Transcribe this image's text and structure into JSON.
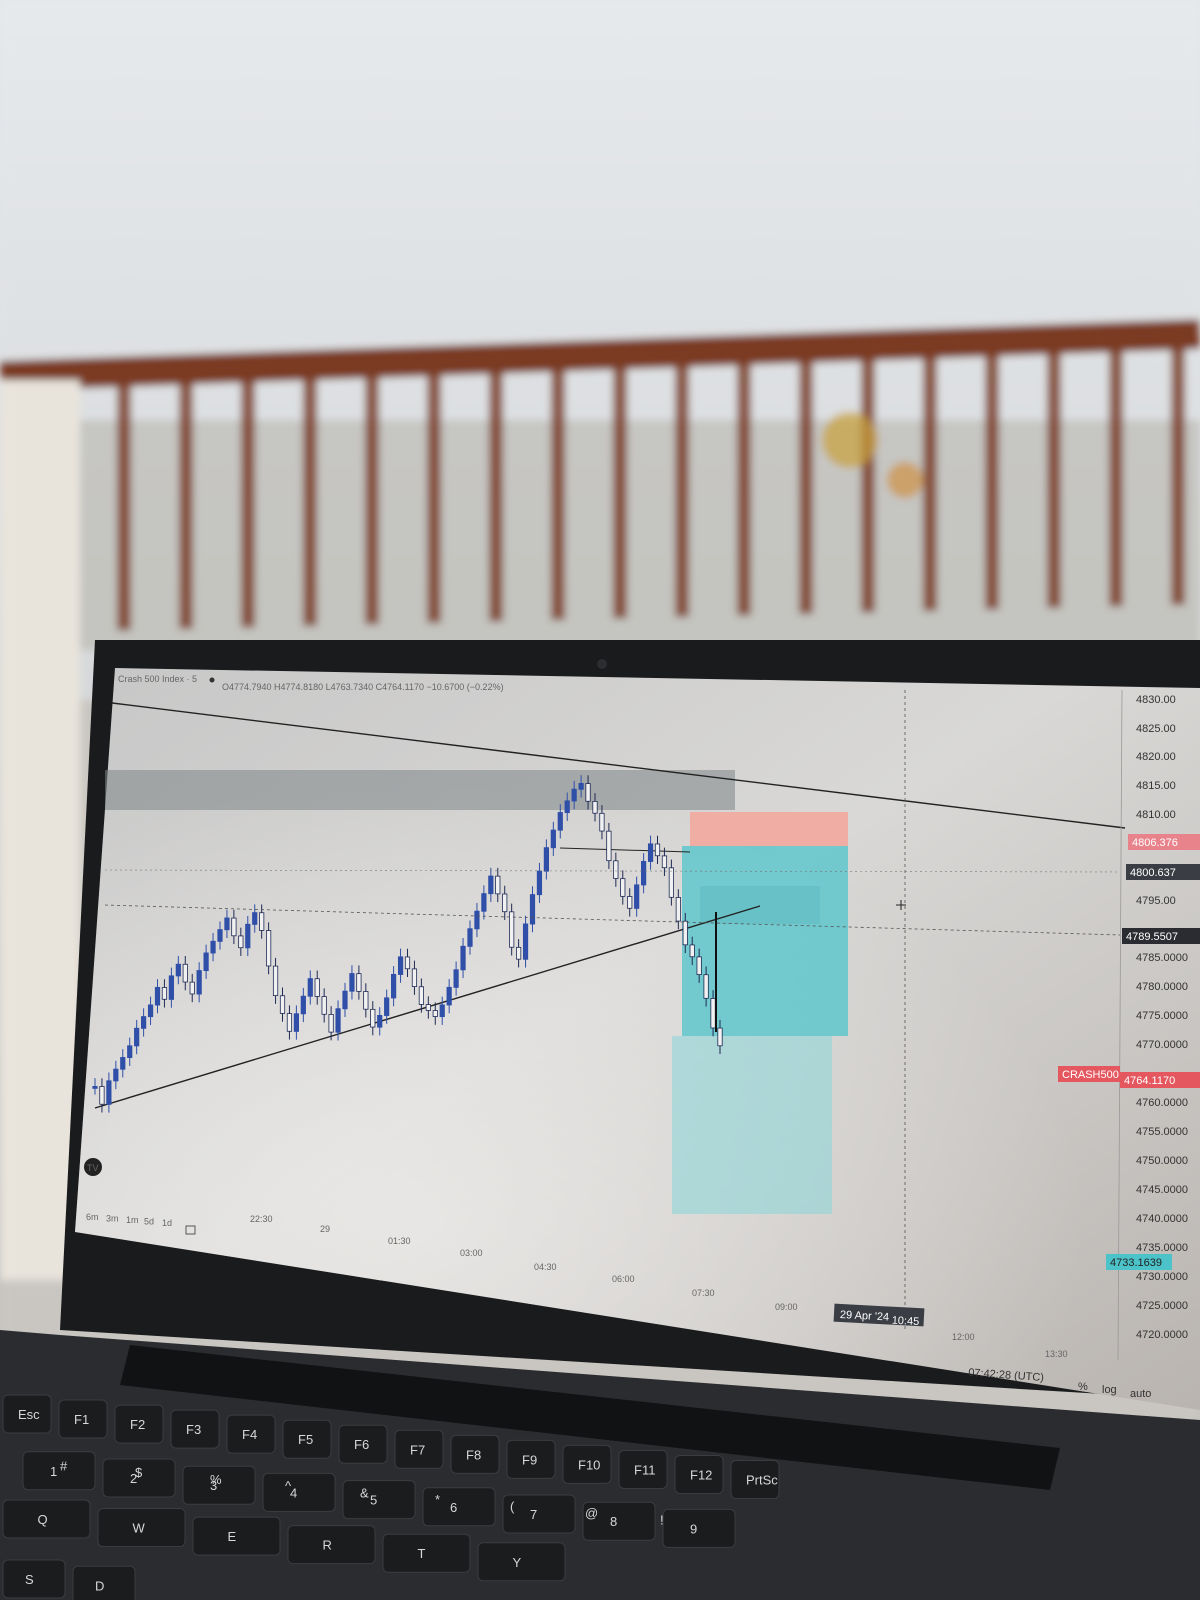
{
  "chart": {
    "symbol_legend": "Crash 500 Index · 5",
    "ohlc_text": "O4774.7940 H4774.8180 L4763.7340 C4764.1170 −10.6700 (−0.22%)",
    "price_ticks": [
      "4830.00",
      "4825.00",
      "4820.00",
      "4815.00",
      "4810.00",
      "4795.00",
      "4785.0000",
      "4780.0000",
      "4775.0000",
      "4770.0000",
      "4760.0000",
      "4755.0000",
      "4750.0000",
      "4745.0000",
      "4740.0000",
      "4735.0000",
      "4730.0000",
      "4725.0000",
      "4720.0000"
    ],
    "badges": {
      "target": "4806.376",
      "level": "4800.637",
      "crosshair": "4789.5507",
      "symbol": "CRASH500",
      "last": "4764.1170",
      "stop": "4733.1639"
    },
    "time_ticks": [
      "22:30",
      "29",
      "01:30",
      "03:00",
      "04:30",
      "06:00",
      "07:30",
      "09:00",
      "12:00",
      "13:30"
    ],
    "crosshair_date": "29 Apr '24",
    "crosshair_time": "10:45",
    "ranges": [
      "6m",
      "3m",
      "1m",
      "5d",
      "1d"
    ],
    "clock": "07:42:28 (UTC)",
    "scale_opts": {
      "percent": "%",
      "log": "log",
      "auto": "auto"
    },
    "tv_logo": "TV"
  },
  "keyboard": {
    "keys": [
      "Esc",
      "F1",
      "F2",
      "F3",
      "F4",
      "F5",
      "F6",
      "F7",
      "F8",
      "F9",
      "F10",
      "F11",
      "F12",
      "PrtSc",
      "1",
      "2",
      "3",
      "4",
      "5",
      "6",
      "7",
      "8",
      "9",
      "Q",
      "W",
      "E",
      "R",
      "T",
      "Y",
      "S",
      "D",
      "#",
      "$",
      "%",
      "^",
      "&",
      "*",
      "(",
      "@",
      "!"
    ]
  },
  "colors": {
    "bull": "#2f4fa8",
    "bear": "#1f2a55",
    "target_zone": "#5fc7cc",
    "stop_zone": "#f2a99f",
    "supply_zone": "#7e8586",
    "railing": "#7a3b22"
  },
  "candles": [
    4765,
    4762,
    4766,
    4768,
    4770,
    4772,
    4775,
    4777,
    4779,
    4782,
    4780,
    4784,
    4786,
    4783,
    4781,
    4785,
    4788,
    4790,
    4792,
    4794,
    4791,
    4789,
    4793,
    4795,
    4792,
    4786,
    4781,
    4778,
    4775,
    4778,
    4781,
    4784,
    4781,
    4778,
    4775,
    4779,
    4782,
    4785,
    4782,
    4779,
    4776,
    4778,
    4781,
    4785,
    4788,
    4786,
    4783,
    4780,
    4779,
    4778,
    4780,
    4783,
    4786,
    4790,
    4793,
    4796,
    4799,
    4802,
    4799,
    4796,
    4790,
    4788,
    4794,
    4799,
    4803,
    4807,
    4810,
    4813,
    4815,
    4817,
    4818,
    4815,
    4813,
    4810,
    4805,
    4802,
    4799,
    4797,
    4801,
    4805,
    4808,
    4806,
    4804,
    4799,
    4795,
    4791,
    4789,
    4786,
    4782,
    4777,
    4774
  ]
}
